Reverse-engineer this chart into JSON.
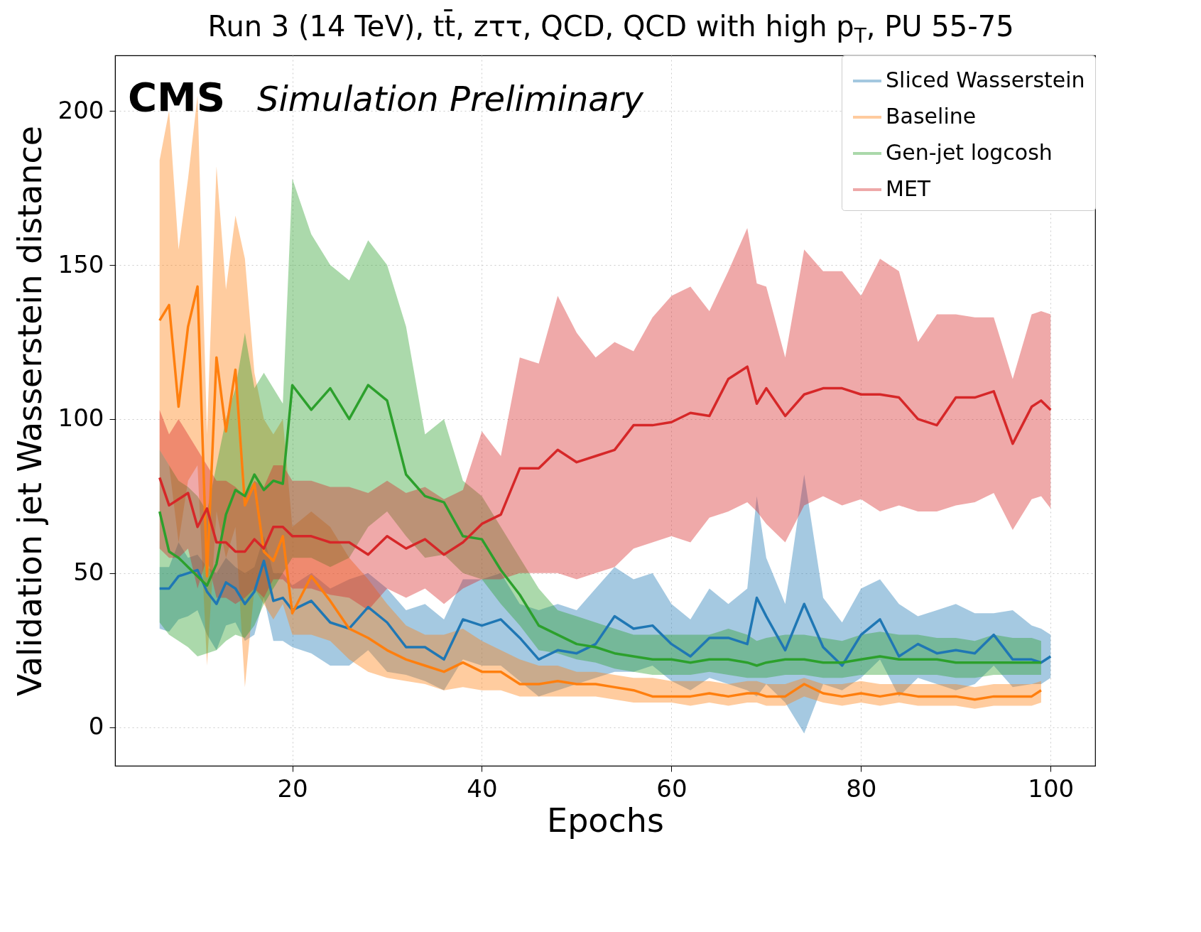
{
  "chart_data": {
    "type": "line",
    "title": "Run 3 (14 TeV), tt̄, zττ, QCD, QCD with high p$_{T}$, PU 55-75",
    "xlabel": "Epochs",
    "ylabel": "Validation jet Wasserstein distance",
    "annotations": [
      "CMS",
      "Simulation Preliminary"
    ],
    "x": [
      6,
      7,
      8,
      9,
      10,
      11,
      12,
      13,
      14,
      15,
      16,
      17,
      18,
      19,
      20,
      22,
      24,
      26,
      28,
      30,
      32,
      34,
      36,
      38,
      40,
      42,
      44,
      46,
      48,
      50,
      52,
      54,
      56,
      58,
      60,
      62,
      64,
      66,
      68,
      69,
      70,
      72,
      74,
      76,
      78,
      80,
      82,
      84,
      86,
      88,
      90,
      92,
      94,
      96,
      98,
      99,
      100
    ],
    "series": [
      {
        "name": "Sliced Wasserstein",
        "color": "#1f77b4",
        "values": [
          45,
          45,
          49,
          50,
          51,
          44,
          40,
          47,
          45,
          40,
          44,
          54,
          41,
          42,
          38,
          41,
          34,
          32,
          39,
          34,
          26,
          26,
          22,
          35,
          33,
          35,
          29,
          22,
          25,
          24,
          27,
          36,
          32,
          33,
          27,
          23,
          29,
          29,
          27,
          42,
          36,
          25,
          40,
          26,
          20,
          30,
          35,
          23,
          27,
          24,
          25,
          24,
          30,
          22,
          22,
          21,
          23
        ],
        "lower": [
          32,
          31,
          35,
          36,
          38,
          30,
          25,
          33,
          34,
          28,
          30,
          42,
          28,
          28,
          26,
          24,
          20,
          20,
          25,
          18,
          17,
          15,
          12,
          22,
          20,
          20,
          15,
          10,
          12,
          14,
          16,
          18,
          18,
          20,
          15,
          12,
          16,
          14,
          12,
          10,
          14,
          8,
          -2,
          14,
          12,
          16,
          22,
          10,
          16,
          14,
          12,
          14,
          20,
          13,
          14,
          14,
          16
        ],
        "upper": [
          52,
          52,
          60,
          55,
          56,
          52,
          50,
          55,
          52,
          50,
          52,
          62,
          50,
          50,
          46,
          50,
          45,
          48,
          50,
          45,
          38,
          40,
          35,
          48,
          48,
          50,
          40,
          38,
          40,
          38,
          45,
          52,
          48,
          50,
          40,
          35,
          45,
          40,
          45,
          75,
          55,
          40,
          82,
          42,
          34,
          45,
          48,
          40,
          36,
          38,
          40,
          37,
          37,
          38,
          33,
          32,
          30
        ]
      },
      {
        "name": "Baseline",
        "color": "#ff7f0e",
        "values": [
          132,
          137,
          104,
          130,
          143,
          49,
          120,
          96,
          116,
          72,
          79,
          57,
          54,
          62,
          37,
          49,
          41,
          32,
          29,
          25,
          22,
          20,
          18,
          21,
          18,
          18,
          14,
          14,
          15,
          14,
          14,
          13,
          12,
          10,
          10,
          10,
          11,
          10,
          11,
          11,
          10,
          10,
          14,
          11,
          10,
          11,
          10,
          11,
          10,
          10,
          10,
          9,
          10,
          10,
          10,
          12,
          null
        ],
        "lower": [
          90,
          85,
          60,
          80,
          85,
          20,
          70,
          55,
          65,
          13,
          45,
          40,
          35,
          40,
          30,
          30,
          28,
          22,
          18,
          16,
          15,
          14,
          12,
          13,
          12,
          12,
          10,
          10,
          10,
          10,
          10,
          9,
          8,
          8,
          8,
          7,
          8,
          7,
          8,
          8,
          7,
          7,
          10,
          8,
          7,
          8,
          7,
          8,
          7,
          7,
          7,
          6,
          7,
          7,
          7,
          8,
          null
        ],
        "upper": [
          184,
          200,
          155,
          178,
          205,
          95,
          182,
          142,
          166,
          152,
          115,
          100,
          95,
          100,
          65,
          70,
          65,
          55,
          48,
          40,
          33,
          30,
          30,
          32,
          28,
          25,
          22,
          20,
          20,
          18,
          18,
          17,
          16,
          16,
          15,
          15,
          15,
          14,
          15,
          15,
          14,
          14,
          16,
          14,
          14,
          15,
          14,
          14,
          14,
          14,
          14,
          13,
          14,
          14,
          14,
          15,
          null
        ]
      },
      {
        "name": "Gen-jet logcosh",
        "color": "#2ca02c",
        "values": [
          70,
          57,
          55,
          52,
          49,
          46,
          53,
          69,
          77,
          75,
          82,
          77,
          80,
          79,
          111,
          103,
          110,
          100,
          111,
          106,
          82,
          75,
          73,
          62,
          61,
          51,
          43,
          33,
          30,
          27,
          26,
          24,
          23,
          22,
          22,
          21,
          22,
          22,
          21,
          20,
          21,
          22,
          22,
          21,
          21,
          22,
          23,
          22,
          22,
          22,
          21,
          21,
          21,
          21,
          21,
          21,
          null
        ],
        "lower": [
          34,
          30,
          28,
          26,
          23,
          24,
          25,
          28,
          30,
          29,
          33,
          40,
          45,
          50,
          55,
          55,
          52,
          55,
          65,
          70,
          62,
          55,
          56,
          50,
          48,
          40,
          33,
          25,
          24,
          22,
          21,
          19,
          18,
          17,
          17,
          17,
          18,
          17,
          16,
          16,
          16,
          17,
          17,
          16,
          16,
          17,
          17,
          17,
          17,
          17,
          16,
          16,
          17,
          17,
          17,
          17,
          null
        ],
        "upper": [
          90,
          85,
          80,
          78,
          75,
          70,
          85,
          100,
          110,
          128,
          110,
          115,
          110,
          105,
          178,
          160,
          150,
          145,
          158,
          150,
          130,
          95,
          100,
          80,
          75,
          65,
          55,
          45,
          38,
          36,
          34,
          32,
          30,
          30,
          30,
          30,
          30,
          32,
          30,
          28,
          29,
          30,
          30,
          29,
          28,
          30,
          31,
          30,
          30,
          29,
          29,
          28,
          30,
          29,
          29,
          28,
          null
        ]
      },
      {
        "name": "MET",
        "color": "#d62728",
        "values": [
          81,
          72,
          74,
          76,
          65,
          71,
          60,
          60,
          57,
          57,
          61,
          58,
          65,
          65,
          62,
          62,
          60,
          60,
          56,
          62,
          58,
          61,
          56,
          60,
          66,
          69,
          84,
          84,
          90,
          86,
          88,
          90,
          98,
          98,
          99,
          102,
          101,
          113,
          117,
          105,
          110,
          101,
          108,
          110,
          110,
          108,
          108,
          107,
          100,
          98,
          107,
          107,
          109,
          92,
          104,
          106,
          103
        ],
        "lower": [
          58,
          55,
          55,
          58,
          45,
          55,
          42,
          42,
          40,
          42,
          45,
          42,
          48,
          48,
          45,
          45,
          43,
          42,
          38,
          45,
          42,
          45,
          40,
          45,
          48,
          48,
          50,
          50,
          50,
          48,
          50,
          52,
          58,
          60,
          62,
          60,
          68,
          70,
          73,
          70,
          66,
          60,
          72,
          75,
          72,
          74,
          70,
          72,
          70,
          70,
          72,
          73,
          76,
          64,
          74,
          75,
          71
        ],
        "upper": [
          103,
          95,
          100,
          95,
          90,
          85,
          80,
          80,
          78,
          75,
          80,
          78,
          85,
          85,
          80,
          80,
          78,
          78,
          76,
          80,
          76,
          78,
          74,
          77,
          96,
          88,
          120,
          118,
          140,
          128,
          120,
          125,
          122,
          133,
          140,
          143,
          135,
          148,
          162,
          144,
          143,
          120,
          155,
          148,
          148,
          140,
          152,
          148,
          125,
          134,
          134,
          133,
          133,
          113,
          134,
          135,
          134
        ]
      }
    ],
    "xlim": [
      1.3,
      104.7
    ],
    "ylim": [
      -12.5,
      218
    ],
    "xticks": [
      20,
      40,
      60,
      80,
      100
    ],
    "yticks": [
      0,
      50,
      100,
      150,
      200
    ],
    "grid": true,
    "legend": "top right"
  }
}
